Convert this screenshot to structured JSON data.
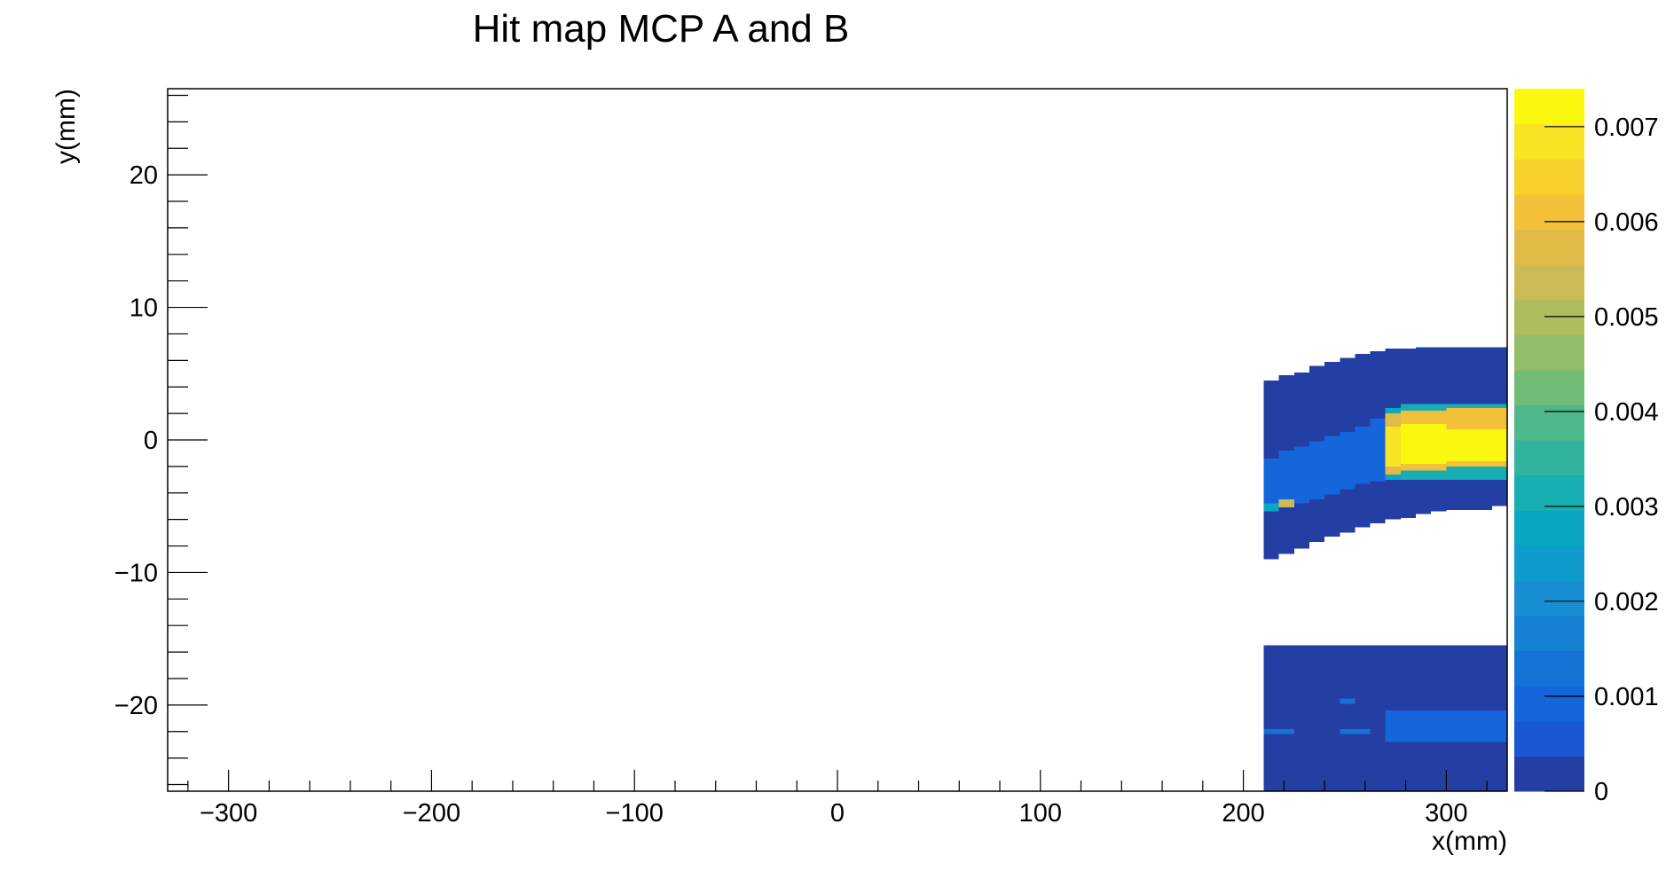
{
  "chart_data": {
    "type": "heatmap",
    "title": "Hit map MCP A and B",
    "xlabel": "x(mm)",
    "ylabel": "y(mm)",
    "xlim": [
      -330,
      330
    ],
    "ylim": [
      -26.5,
      26.5
    ],
    "x_ticks": [
      -300,
      -200,
      -100,
      0,
      100,
      200,
      300
    ],
    "x_tick_labels": [
      "−300",
      "−200",
      "−100",
      "0",
      "100",
      "200",
      "300"
    ],
    "y_ticks": [
      -20,
      -10,
      0,
      10,
      20
    ],
    "y_tick_labels": [
      "−20",
      "−10",
      "0",
      "10",
      "20"
    ],
    "z_range": [
      0,
      0.0074
    ],
    "colorbar_ticks": [
      0,
      0.001,
      0.002,
      0.003,
      0.004,
      0.005,
      0.006,
      0.007
    ],
    "colorbar_tick_labels": [
      "0",
      "0.001",
      "0.002",
      "0.003",
      "0.004",
      "0.005",
      "0.006",
      "0.007"
    ],
    "colorbar_colors": [
      "#243fa4",
      "#1a57d3",
      "#1565db",
      "#1573d6",
      "#1481d3",
      "#168ed1",
      "#0f9ccc",
      "#0aa6c2",
      "#18adb1",
      "#31b39d",
      "#4eb88a",
      "#71bd78",
      "#93be6a",
      "#b0bd5f",
      "#cbbb56",
      "#e1bb48",
      "#f2c139",
      "#f9d12b",
      "#f8e324",
      "#f9f80e"
    ],
    "grid": false,
    "legend": "none",
    "x_bins": [
      210,
      217.5,
      225,
      232.5,
      240,
      247.5,
      255,
      262.5,
      270,
      277.5,
      285,
      292.5,
      300,
      307.5,
      315,
      322.5,
      330
    ],
    "cells": [
      {
        "x0": 210,
        "x1": 217.5,
        "y0": -9.0,
        "y1": 4.5,
        "z": 0.0002
      },
      {
        "x0": 217.5,
        "x1": 225,
        "y0": -8.6,
        "y1": 4.9,
        "z": 0.0002
      },
      {
        "x0": 225,
        "x1": 232.5,
        "y0": -8.2,
        "y1": 5.1,
        "z": 0.0002
      },
      {
        "x0": 232.5,
        "x1": 240,
        "y0": -7.7,
        "y1": 5.6,
        "z": 0.0002
      },
      {
        "x0": 240,
        "x1": 247.5,
        "y0": -7.3,
        "y1": 5.9,
        "z": 0.0002
      },
      {
        "x0": 247.5,
        "x1": 255,
        "y0": -7.0,
        "y1": 6.2,
        "z": 0.0002
      },
      {
        "x0": 255,
        "x1": 262.5,
        "y0": -6.6,
        "y1": 6.5,
        "z": 0.0002
      },
      {
        "x0": 262.5,
        "x1": 270,
        "y0": -6.3,
        "y1": 6.7,
        "z": 0.0002
      },
      {
        "x0": 270,
        "x1": 277.5,
        "y0": -6.0,
        "y1": 6.9,
        "z": 0.0002
      },
      {
        "x0": 277.5,
        "x1": 285,
        "y0": -5.9,
        "y1": 6.9,
        "z": 0.0002
      },
      {
        "x0": 285,
        "x1": 292.5,
        "y0": -5.6,
        "y1": 7.0,
        "z": 0.0002
      },
      {
        "x0": 292.5,
        "x1": 300,
        "y0": -5.4,
        "y1": 7.0,
        "z": 0.0002
      },
      {
        "x0": 300,
        "x1": 307.5,
        "y0": -5.3,
        "y1": 7.0,
        "z": 0.0002
      },
      {
        "x0": 307.5,
        "x1": 315,
        "y0": -5.3,
        "y1": 7.0,
        "z": 0.0002
      },
      {
        "x0": 315,
        "x1": 322.5,
        "y0": -5.3,
        "y1": 7.0,
        "z": 0.0002
      },
      {
        "x0": 322.5,
        "x1": 330,
        "y0": -5.0,
        "y1": 7.0,
        "z": 0.0002
      },
      {
        "x0": 210,
        "x1": 217.5,
        "y0": -5.4,
        "y1": -1.4,
        "z": 0.0011
      },
      {
        "x0": 217.5,
        "x1": 225,
        "y0": -5.0,
        "y1": -0.8,
        "z": 0.0011
      },
      {
        "x0": 225,
        "x1": 232.5,
        "y0": -4.8,
        "y1": -0.5,
        "z": 0.0011
      },
      {
        "x0": 232.5,
        "x1": 240,
        "y0": -4.5,
        "y1": -0.1,
        "z": 0.0011
      },
      {
        "x0": 240,
        "x1": 247.5,
        "y0": -4.1,
        "y1": 0.3,
        "z": 0.0011
      },
      {
        "x0": 247.5,
        "x1": 255,
        "y0": -3.7,
        "y1": 0.6,
        "z": 0.0011
      },
      {
        "x0": 255,
        "x1": 262.5,
        "y0": -3.3,
        "y1": 1.0,
        "z": 0.0011
      },
      {
        "x0": 262.5,
        "x1": 270,
        "y0": -3.1,
        "y1": 1.6,
        "z": 0.0011
      },
      {
        "x0": 210,
        "x1": 217.5,
        "y0": -5.4,
        "y1": -4.8,
        "z": 0.0026
      },
      {
        "x0": 217.5,
        "x1": 225,
        "y0": -5.1,
        "y1": -4.5,
        "z": 0.0052
      },
      {
        "x0": 270,
        "x1": 277.5,
        "y0": -3.0,
        "y1": 2.4,
        "z": 0.0028
      },
      {
        "x0": 277.5,
        "x1": 330,
        "y0": -3.0,
        "y1": 2.7,
        "z": 0.003
      },
      {
        "x0": 270,
        "x1": 277.5,
        "y0": -2.6,
        "y1": 2.0,
        "z": 0.0058
      },
      {
        "x0": 277.5,
        "x1": 300,
        "y0": -2.3,
        "y1": 2.2,
        "z": 0.006
      },
      {
        "x0": 300,
        "x1": 330,
        "y0": -2.0,
        "y1": 2.4,
        "z": 0.0062
      },
      {
        "x0": 270,
        "x1": 277.5,
        "y0": -2.0,
        "y1": 1.0,
        "z": 0.007
      },
      {
        "x0": 277.5,
        "x1": 300,
        "y0": -1.8,
        "y1": 1.2,
        "z": 0.0072
      },
      {
        "x0": 300,
        "x1": 330,
        "y0": -1.6,
        "y1": 0.8,
        "z": 0.0074
      },
      {
        "x0": 210,
        "x1": 330,
        "y0": -26.5,
        "y1": -15.5,
        "z": 0.0002
      },
      {
        "x0": 270,
        "x1": 330,
        "y0": -22.8,
        "y1": -20.4,
        "z": 0.001
      },
      {
        "x0": 210,
        "x1": 225,
        "y0": -22.2,
        "y1": -21.8,
        "z": 0.0012
      },
      {
        "x0": 247.5,
        "x1": 262.5,
        "y0": -22.2,
        "y1": -21.8,
        "z": 0.0012
      },
      {
        "x0": 247.5,
        "x1": 255,
        "y0": -19.9,
        "y1": -19.5,
        "z": 0.0012
      }
    ]
  }
}
